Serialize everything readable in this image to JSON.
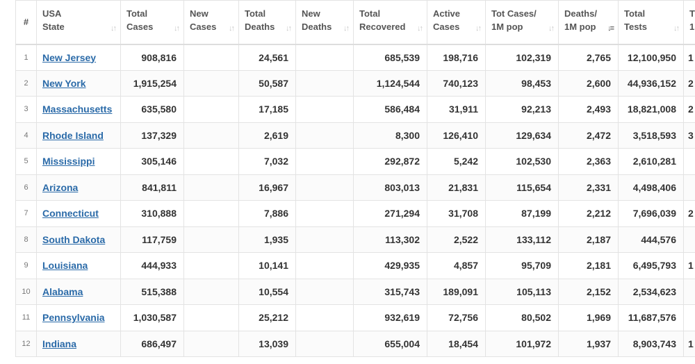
{
  "table": {
    "headers": [
      {
        "key": "idx",
        "label": [
          "#"
        ]
      },
      {
        "key": "state",
        "label": [
          "USA",
          "State"
        ]
      },
      {
        "key": "total_cases",
        "label": [
          "Total",
          "Cases"
        ]
      },
      {
        "key": "new_cases",
        "label": [
          "New",
          "Cases"
        ]
      },
      {
        "key": "total_deaths",
        "label": [
          "Total",
          "Deaths"
        ]
      },
      {
        "key": "new_deaths",
        "label": [
          "New",
          "Deaths"
        ]
      },
      {
        "key": "total_recovered",
        "label": [
          "Total",
          "Recovered"
        ]
      },
      {
        "key": "active_cases",
        "label": [
          "Active",
          "Cases"
        ]
      },
      {
        "key": "cases_per_1m",
        "label": [
          "Tot Cases/",
          "1M pop"
        ]
      },
      {
        "key": "deaths_per_1m",
        "label": [
          "Deaths/",
          "1M pop"
        ]
      },
      {
        "key": "total_tests",
        "label": [
          "Total",
          "Tests"
        ]
      },
      {
        "key": "extra",
        "label": [
          "T",
          "1"
        ]
      }
    ],
    "sorted_column": "deaths_per_1m",
    "rows": [
      {
        "idx": "1",
        "state": "New Jersey",
        "total_cases": "908,816",
        "new_cases": "",
        "total_deaths": "24,561",
        "new_deaths": "",
        "total_recovered": "685,539",
        "active_cases": "198,716",
        "cases_per_1m": "102,319",
        "deaths_per_1m": "2,765",
        "total_tests": "12,100,950",
        "extra": "1"
      },
      {
        "idx": "2",
        "state": "New York",
        "total_cases": "1,915,254",
        "new_cases": "",
        "total_deaths": "50,587",
        "new_deaths": "",
        "total_recovered": "1,124,544",
        "active_cases": "740,123",
        "cases_per_1m": "98,453",
        "deaths_per_1m": "2,600",
        "total_tests": "44,936,152",
        "extra": "2"
      },
      {
        "idx": "3",
        "state": "Massachusetts",
        "total_cases": "635,580",
        "new_cases": "",
        "total_deaths": "17,185",
        "new_deaths": "",
        "total_recovered": "586,484",
        "active_cases": "31,911",
        "cases_per_1m": "92,213",
        "deaths_per_1m": "2,493",
        "total_tests": "18,821,008",
        "extra": "2"
      },
      {
        "idx": "4",
        "state": "Rhode Island",
        "total_cases": "137,329",
        "new_cases": "",
        "total_deaths": "2,619",
        "new_deaths": "",
        "total_recovered": "8,300",
        "active_cases": "126,410",
        "cases_per_1m": "129,634",
        "deaths_per_1m": "2,472",
        "total_tests": "3,518,593",
        "extra": "3"
      },
      {
        "idx": "5",
        "state": "Mississippi",
        "total_cases": "305,146",
        "new_cases": "",
        "total_deaths": "7,032",
        "new_deaths": "",
        "total_recovered": "292,872",
        "active_cases": "5,242",
        "cases_per_1m": "102,530",
        "deaths_per_1m": "2,363",
        "total_tests": "2,610,281",
        "extra": ""
      },
      {
        "idx": "6",
        "state": "Arizona",
        "total_cases": "841,811",
        "new_cases": "",
        "total_deaths": "16,967",
        "new_deaths": "",
        "total_recovered": "803,013",
        "active_cases": "21,831",
        "cases_per_1m": "115,654",
        "deaths_per_1m": "2,331",
        "total_tests": "4,498,406",
        "extra": ""
      },
      {
        "idx": "7",
        "state": "Connecticut",
        "total_cases": "310,888",
        "new_cases": "",
        "total_deaths": "7,886",
        "new_deaths": "",
        "total_recovered": "271,294",
        "active_cases": "31,708",
        "cases_per_1m": "87,199",
        "deaths_per_1m": "2,212",
        "total_tests": "7,696,039",
        "extra": "2"
      },
      {
        "idx": "8",
        "state": "South Dakota",
        "total_cases": "117,759",
        "new_cases": "",
        "total_deaths": "1,935",
        "new_deaths": "",
        "total_recovered": "113,302",
        "active_cases": "2,522",
        "cases_per_1m": "133,112",
        "deaths_per_1m": "2,187",
        "total_tests": "444,576",
        "extra": ""
      },
      {
        "idx": "9",
        "state": "Louisiana",
        "total_cases": "444,933",
        "new_cases": "",
        "total_deaths": "10,141",
        "new_deaths": "",
        "total_recovered": "429,935",
        "active_cases": "4,857",
        "cases_per_1m": "95,709",
        "deaths_per_1m": "2,181",
        "total_tests": "6,495,793",
        "extra": "1"
      },
      {
        "idx": "10",
        "state": "Alabama",
        "total_cases": "515,388",
        "new_cases": "",
        "total_deaths": "10,554",
        "new_deaths": "",
        "total_recovered": "315,743",
        "active_cases": "189,091",
        "cases_per_1m": "105,113",
        "deaths_per_1m": "2,152",
        "total_tests": "2,534,623",
        "extra": ""
      },
      {
        "idx": "11",
        "state": "Pennsylvania",
        "total_cases": "1,030,587",
        "new_cases": "",
        "total_deaths": "25,212",
        "new_deaths": "",
        "total_recovered": "932,619",
        "active_cases": "72,756",
        "cases_per_1m": "80,502",
        "deaths_per_1m": "1,969",
        "total_tests": "11,687,576",
        "extra": ""
      },
      {
        "idx": "12",
        "state": "Indiana",
        "total_cases": "686,497",
        "new_cases": "",
        "total_deaths": "13,039",
        "new_deaths": "",
        "total_recovered": "655,004",
        "active_cases": "18,454",
        "cases_per_1m": "101,972",
        "deaths_per_1m": "1,937",
        "total_tests": "8,903,743",
        "extra": "1"
      }
    ]
  }
}
